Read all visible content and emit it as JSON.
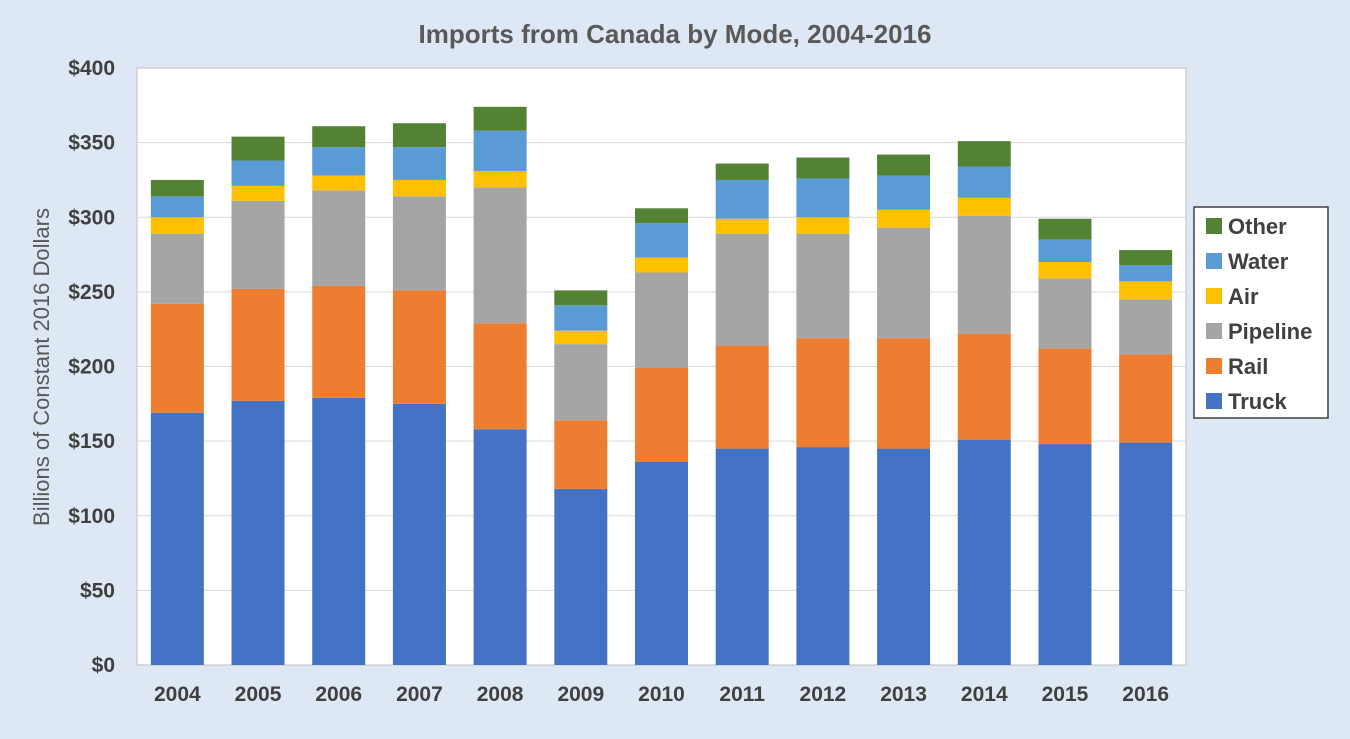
{
  "chart_data": {
    "type": "bar",
    "stacked": true,
    "title": "Imports from Canada by Mode, 2004-2016",
    "xlabel": "",
    "ylabel": "Billions of Constant 2016 Dollars",
    "ylim": [
      0,
      400
    ],
    "yticks": [
      0,
      50,
      100,
      150,
      200,
      250,
      300,
      350,
      400
    ],
    "ytick_labels": [
      "$0",
      "$50",
      "$100",
      "$150",
      "$200",
      "$250",
      "$300",
      "$350",
      "$400"
    ],
    "categories": [
      "2004",
      "2005",
      "2006",
      "2007",
      "2008",
      "2009",
      "2010",
      "2011",
      "2012",
      "2013",
      "2014",
      "2015",
      "2016"
    ],
    "grid": "horizontal",
    "legend_position": "right",
    "series": [
      {
        "name": "Truck",
        "color": "#4472c4",
        "values": [
          169,
          177,
          179,
          175,
          158,
          118,
          136,
          145,
          146,
          145,
          151,
          148,
          149
        ]
      },
      {
        "name": "Rail",
        "color": "#ed7d31",
        "values": [
          73,
          75,
          75,
          76,
          71,
          46,
          63,
          69,
          73,
          74,
          71,
          64,
          59
        ]
      },
      {
        "name": "Pipeline",
        "color": "#a5a5a5",
        "values": [
          47,
          59,
          64,
          63,
          91,
          51,
          64,
          75,
          70,
          74,
          79,
          47,
          37
        ]
      },
      {
        "name": "Air",
        "color": "#ffc000",
        "values": [
          11,
          10,
          10,
          11,
          11,
          9,
          10,
          10,
          11,
          12,
          12,
          11,
          12
        ]
      },
      {
        "name": "Water",
        "color": "#5b9bd5",
        "values": [
          14,
          17,
          19,
          22,
          27,
          17,
          23,
          26,
          26,
          23,
          21,
          15,
          11
        ]
      },
      {
        "name": "Other",
        "color": "#548235",
        "values": [
          11,
          16,
          14,
          16,
          16,
          10,
          10,
          11,
          14,
          14,
          17,
          14,
          10
        ]
      }
    ],
    "legend_order": [
      "Other",
      "Water",
      "Air",
      "Pipeline",
      "Rail",
      "Truck"
    ]
  }
}
